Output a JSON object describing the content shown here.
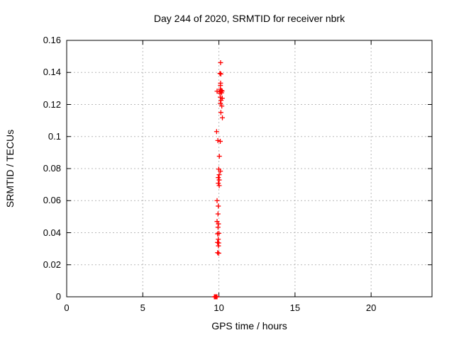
{
  "window": {
    "background": "#ffffff",
    "text_color": "#000000"
  },
  "chart_data": {
    "type": "scatter",
    "title": "Day 244 of 2020, SRMTID for receiver nbrk",
    "xlabel": "GPS time / hours",
    "ylabel": "SRMTID / TECUs",
    "xlim": [
      0,
      24
    ],
    "ylim": [
      0,
      0.16
    ],
    "xticks": {
      "values": [
        0,
        5,
        10,
        15,
        20
      ],
      "labels": [
        "0",
        "5",
        "10",
        "15",
        "20"
      ]
    },
    "yticks": {
      "values": [
        0,
        0.02,
        0.04,
        0.06,
        0.08,
        0.1,
        0.12,
        0.14,
        0.16
      ],
      "labels": [
        "0",
        "0.02",
        "0.04",
        "0.06",
        "0.08",
        "0.1",
        "0.12",
        "0.14",
        "0.16"
      ]
    },
    "grid": true,
    "grid_style": "dotted",
    "grid_color": "#b8b8b8",
    "axis_color": "#000000",
    "legend": "none",
    "series": [
      {
        "name": "SRMTID",
        "marker": "plus",
        "color": "#ff0000",
        "points": [
          [
            10.11,
            0.1461
          ],
          [
            10.07,
            0.1394
          ],
          [
            10.13,
            0.139
          ],
          [
            10.11,
            0.1333
          ],
          [
            10.1,
            0.1319
          ],
          [
            9.88,
            0.1283
          ],
          [
            10.09,
            0.1295
          ],
          [
            10.16,
            0.1288
          ],
          [
            10.11,
            0.128
          ],
          [
            10.21,
            0.1284
          ],
          [
            10.07,
            0.1271
          ],
          [
            10.18,
            0.1273
          ],
          [
            10.09,
            0.1246
          ],
          [
            10.22,
            0.1239
          ],
          [
            10.14,
            0.1226
          ],
          [
            10.1,
            0.1207
          ],
          [
            10.19,
            0.119
          ],
          [
            10.13,
            0.115
          ],
          [
            10.23,
            0.1117
          ],
          [
            9.85,
            0.1031
          ],
          [
            9.93,
            0.0975
          ],
          [
            10.09,
            0.097
          ],
          [
            10.03,
            0.0877
          ],
          [
            9.99,
            0.0796
          ],
          [
            10.1,
            0.0784
          ],
          [
            10.02,
            0.0762
          ],
          [
            9.96,
            0.0744
          ],
          [
            10.02,
            0.0729
          ],
          [
            9.96,
            0.0709
          ],
          [
            10.02,
            0.0694
          ],
          [
            9.88,
            0.06
          ],
          [
            9.96,
            0.0566
          ],
          [
            9.94,
            0.0517
          ],
          [
            9.88,
            0.047
          ],
          [
            9.97,
            0.0455
          ],
          [
            9.94,
            0.0434
          ],
          [
            9.91,
            0.0393
          ],
          [
            10.0,
            0.0396
          ],
          [
            9.96,
            0.0359
          ],
          [
            9.91,
            0.0339
          ],
          [
            9.99,
            0.0336
          ],
          [
            9.97,
            0.0318
          ],
          [
            9.91,
            0.0275
          ],
          [
            9.99,
            0.0272
          ],
          [
            9.7,
            0.0
          ],
          [
            9.72,
            0.0
          ],
          [
            9.74,
            0.0
          ],
          [
            9.76,
            0.0
          ],
          [
            9.78,
            0.0
          ],
          [
            9.8,
            0.0
          ],
          [
            9.82,
            0.0
          ],
          [
            9.84,
            0.0
          ],
          [
            9.86,
            0.0
          ],
          [
            9.88,
            0.0
          ]
        ]
      }
    ]
  }
}
